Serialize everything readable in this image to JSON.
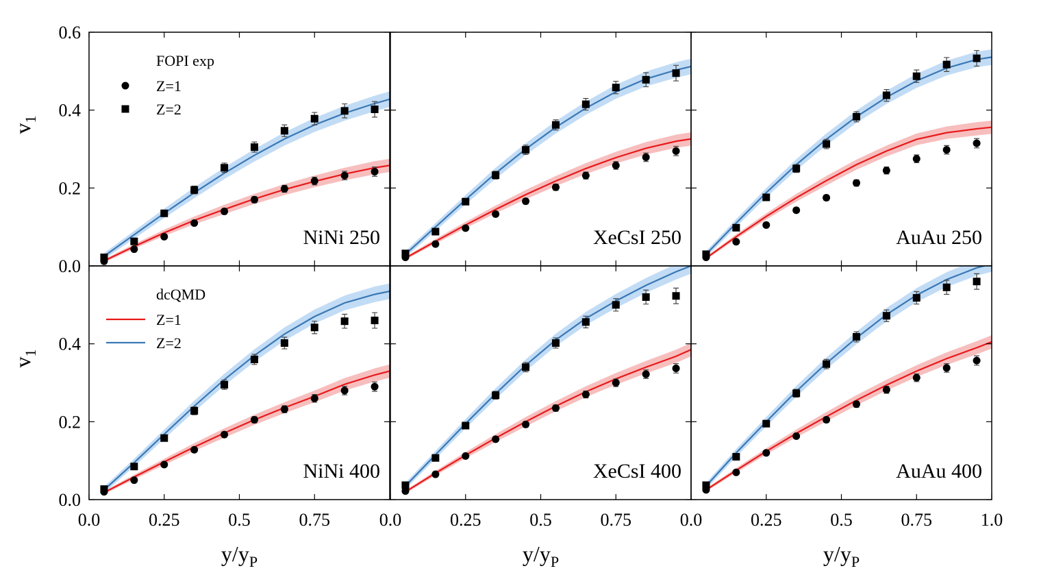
{
  "chart_data": [
    {
      "type": "scatter",
      "label": "NiNi 250",
      "xlim": [
        0,
        1
      ],
      "ylim": [
        0,
        0.6
      ],
      "xticks": [
        0,
        0.25,
        0.5,
        0.75,
        1
      ],
      "yticks": [
        {
          "value": 0,
          "label": "0.0"
        },
        0.2,
        0.4,
        0.6
      ],
      "ylabel": {
        "text": "v",
        "sub": "1"
      },
      "legend_title": "FOPI exp",
      "x": [
        0.05,
        0.15,
        0.25,
        0.35,
        0.45,
        0.55,
        0.65,
        0.75,
        0.85,
        0.95
      ],
      "series": [
        {
          "name": "Z=1",
          "marker": "circle",
          "color": "#000000",
          "values": [
            0.012,
            0.043,
            0.075,
            0.11,
            0.14,
            0.17,
            0.198,
            0.218,
            0.232,
            0.242
          ],
          "errors": [
            0.004,
            0.004,
            0.005,
            0.006,
            0.007,
            0.008,
            0.009,
            0.01,
            0.011,
            0.012
          ]
        },
        {
          "name": "Z=2",
          "marker": "square",
          "color": "#000000",
          "values": [
            0.022,
            0.063,
            0.135,
            0.195,
            0.252,
            0.305,
            0.347,
            0.378,
            0.398,
            0.402
          ],
          "errors": [
            0.006,
            0.007,
            0.008,
            0.01,
            0.012,
            0.013,
            0.015,
            0.016,
            0.018,
            0.02
          ]
        }
      ],
      "model": [
        {
          "color": "#e8191a",
          "band_color": "#f4a8a8",
          "x": [
            0.05,
            0.15,
            0.25,
            0.35,
            0.45,
            0.55,
            0.65,
            0.75,
            0.85,
            0.95,
            1.0
          ],
          "values": [
            0.013,
            0.05,
            0.085,
            0.117,
            0.145,
            0.172,
            0.196,
            0.217,
            0.236,
            0.252,
            0.258
          ],
          "band": [
            0.004,
            0.006,
            0.008,
            0.01,
            0.012,
            0.013,
            0.014,
            0.015,
            0.016,
            0.017,
            0.017
          ]
        },
        {
          "color": "#3a78b5",
          "band_color": "#aed0f2",
          "x": [
            0.05,
            0.15,
            0.25,
            0.35,
            0.45,
            0.55,
            0.65,
            0.75,
            0.85,
            0.95,
            1.0
          ],
          "values": [
            0.025,
            0.08,
            0.135,
            0.188,
            0.238,
            0.284,
            0.326,
            0.362,
            0.392,
            0.417,
            0.428
          ],
          "band": [
            0.008,
            0.01,
            0.012,
            0.014,
            0.015,
            0.016,
            0.017,
            0.018,
            0.019,
            0.02,
            0.02
          ]
        }
      ]
    },
    {
      "type": "scatter",
      "label": "XeCsI 250",
      "xlim": [
        0,
        1
      ],
      "ylim": [
        0,
        0.6
      ],
      "xticks": [
        0,
        0.25,
        0.5,
        0.75,
        1
      ],
      "yticks": [
        0,
        0.2,
        0.4,
        0.6
      ],
      "x": [
        0.05,
        0.15,
        0.25,
        0.35,
        0.45,
        0.55,
        0.65,
        0.75,
        0.85,
        0.95
      ],
      "series": [
        {
          "marker": "circle",
          "color": "#000000",
          "values": [
            0.022,
            0.056,
            0.097,
            0.133,
            0.166,
            0.202,
            0.232,
            0.258,
            0.279,
            0.295
          ],
          "errors": [
            0.004,
            0.004,
            0.005,
            0.006,
            0.007,
            0.008,
            0.009,
            0.01,
            0.011,
            0.012
          ]
        },
        {
          "marker": "square",
          "color": "#000000",
          "values": [
            0.032,
            0.088,
            0.165,
            0.233,
            0.298,
            0.362,
            0.415,
            0.458,
            0.478,
            0.495
          ],
          "errors": [
            0.006,
            0.007,
            0.008,
            0.01,
            0.012,
            0.013,
            0.015,
            0.016,
            0.018,
            0.02
          ]
        }
      ],
      "model": [
        {
          "color": "#e8191a",
          "band_color": "#f4a8a8",
          "x": [
            0.05,
            0.15,
            0.25,
            0.35,
            0.45,
            0.55,
            0.65,
            0.75,
            0.85,
            0.95,
            1.0
          ],
          "values": [
            0.02,
            0.063,
            0.105,
            0.145,
            0.183,
            0.218,
            0.25,
            0.278,
            0.302,
            0.32,
            0.326
          ],
          "band": [
            0.004,
            0.006,
            0.008,
            0.01,
            0.012,
            0.013,
            0.014,
            0.015,
            0.016,
            0.017,
            0.017
          ]
        },
        {
          "color": "#3a78b5",
          "band_color": "#aed0f2",
          "x": [
            0.05,
            0.15,
            0.25,
            0.35,
            0.45,
            0.55,
            0.65,
            0.75,
            0.85,
            0.95,
            1.0
          ],
          "values": [
            0.03,
            0.1,
            0.17,
            0.238,
            0.3,
            0.356,
            0.405,
            0.447,
            0.48,
            0.503,
            0.512
          ],
          "band": [
            0.008,
            0.01,
            0.012,
            0.014,
            0.015,
            0.016,
            0.017,
            0.018,
            0.019,
            0.02,
            0.02
          ]
        }
      ]
    },
    {
      "type": "scatter",
      "label": "AuAu 250",
      "xlim": [
        0,
        1
      ],
      "ylim": [
        0,
        0.6
      ],
      "xticks": [
        0,
        0.25,
        0.5,
        0.75,
        1
      ],
      "yticks": [
        0,
        0.2,
        0.4,
        0.6
      ],
      "x": [
        0.05,
        0.15,
        0.25,
        0.35,
        0.45,
        0.55,
        0.65,
        0.75,
        0.85,
        0.95
      ],
      "series": [
        {
          "marker": "circle",
          "color": "#000000",
          "values": [
            0.022,
            0.062,
            0.105,
            0.143,
            0.175,
            0.213,
            0.245,
            0.275,
            0.298,
            0.315
          ],
          "errors": [
            0.004,
            0.004,
            0.005,
            0.006,
            0.007,
            0.008,
            0.009,
            0.01,
            0.011,
            0.012
          ]
        },
        {
          "marker": "square",
          "color": "#000000",
          "values": [
            0.03,
            0.098,
            0.176,
            0.25,
            0.313,
            0.383,
            0.438,
            0.487,
            0.517,
            0.533
          ],
          "errors": [
            0.006,
            0.007,
            0.008,
            0.01,
            0.012,
            0.013,
            0.015,
            0.016,
            0.018,
            0.02
          ]
        }
      ],
      "model": [
        {
          "color": "#e8191a",
          "band_color": "#f4a8a8",
          "x": [
            0.05,
            0.15,
            0.25,
            0.35,
            0.45,
            0.55,
            0.65,
            0.75,
            0.85,
            0.95,
            1.0
          ],
          "values": [
            0.02,
            0.075,
            0.127,
            0.175,
            0.219,
            0.26,
            0.295,
            0.325,
            0.342,
            0.352,
            0.356
          ],
          "band": [
            0.004,
            0.006,
            0.008,
            0.01,
            0.012,
            0.013,
            0.014,
            0.015,
            0.016,
            0.017,
            0.017
          ]
        },
        {
          "color": "#3a78b5",
          "band_color": "#aed0f2",
          "x": [
            0.05,
            0.15,
            0.25,
            0.35,
            0.45,
            0.55,
            0.65,
            0.75,
            0.85,
            0.95,
            1.0
          ],
          "values": [
            0.03,
            0.11,
            0.188,
            0.26,
            0.325,
            0.383,
            0.433,
            0.475,
            0.508,
            0.53,
            0.536
          ],
          "band": [
            0.008,
            0.01,
            0.012,
            0.014,
            0.015,
            0.016,
            0.017,
            0.018,
            0.019,
            0.02,
            0.02
          ]
        }
      ]
    },
    {
      "type": "scatter",
      "label": "NiNi 400",
      "xlim": [
        0,
        1
      ],
      "ylim": [
        0,
        0.6
      ],
      "xticks": [
        {
          "value": 0,
          "label": "0.0"
        },
        0.25,
        0.5,
        0.75
      ],
      "yticks": [
        {
          "value": 0,
          "label": "0.0"
        },
        0.2,
        0.4
      ],
      "ylabel": {
        "text": "v",
        "sub": "1"
      },
      "xlabel": {
        "text": "y/y",
        "sub": "P"
      },
      "legend_title": "dcQMD",
      "x": [
        0.05,
        0.15,
        0.25,
        0.35,
        0.45,
        0.55,
        0.65,
        0.75,
        0.85,
        0.95
      ],
      "series": [
        {
          "marker": "circle",
          "color": "#000000",
          "values": [
            0.02,
            0.05,
            0.09,
            0.128,
            0.167,
            0.205,
            0.232,
            0.26,
            0.28,
            0.29
          ],
          "errors": [
            0.004,
            0.004,
            0.005,
            0.006,
            0.007,
            0.008,
            0.009,
            0.01,
            0.011,
            0.012
          ]
        },
        {
          "marker": "square",
          "color": "#000000",
          "values": [
            0.027,
            0.085,
            0.158,
            0.228,
            0.295,
            0.36,
            0.402,
            0.442,
            0.458,
            0.46
          ],
          "errors": [
            0.006,
            0.007,
            0.008,
            0.01,
            0.012,
            0.013,
            0.015,
            0.016,
            0.018,
            0.02
          ]
        }
      ],
      "model": [
        {
          "name": "Z=1",
          "color": "#e8191a",
          "band_color": "#f4a8a8",
          "x": [
            0.05,
            0.15,
            0.25,
            0.35,
            0.45,
            0.55,
            0.65,
            0.75,
            0.85,
            0.95,
            1.0
          ],
          "values": [
            0.018,
            0.058,
            0.097,
            0.135,
            0.171,
            0.205,
            0.236,
            0.265,
            0.296,
            0.32,
            0.33
          ],
          "band": [
            0.004,
            0.006,
            0.008,
            0.01,
            0.012,
            0.013,
            0.014,
            0.015,
            0.016,
            0.017,
            0.017
          ]
        },
        {
          "name": "Z=2",
          "color": "#3a78b5",
          "band_color": "#aed0f2",
          "x": [
            0.05,
            0.15,
            0.25,
            0.35,
            0.45,
            0.55,
            0.65,
            0.75,
            0.85,
            0.95,
            1.0
          ],
          "values": [
            0.025,
            0.095,
            0.168,
            0.24,
            0.308,
            0.37,
            0.425,
            0.47,
            0.505,
            0.527,
            0.535
          ],
          "band": [
            0.008,
            0.01,
            0.012,
            0.014,
            0.015,
            0.016,
            0.017,
            0.018,
            0.019,
            0.02,
            0.02
          ]
        }
      ]
    },
    {
      "type": "scatter",
      "label": "XeCsI 400",
      "xlim": [
        0,
        1
      ],
      "ylim": [
        0,
        0.6
      ],
      "xticks": [
        {
          "value": 0,
          "label": "0.0"
        },
        0.25,
        0.5,
        0.75
      ],
      "yticks": [
        0,
        0.2,
        0.4
      ],
      "xlabel": {
        "text": "y/y",
        "sub": "P"
      },
      "x": [
        0.05,
        0.15,
        0.25,
        0.35,
        0.45,
        0.55,
        0.65,
        0.75,
        0.85,
        0.95
      ],
      "series": [
        {
          "marker": "circle",
          "color": "#000000",
          "values": [
            0.022,
            0.065,
            0.112,
            0.155,
            0.193,
            0.235,
            0.27,
            0.3,
            0.322,
            0.337
          ],
          "errors": [
            0.004,
            0.004,
            0.005,
            0.006,
            0.007,
            0.008,
            0.009,
            0.01,
            0.011,
            0.012
          ]
        },
        {
          "marker": "square",
          "color": "#000000",
          "values": [
            0.037,
            0.107,
            0.19,
            0.268,
            0.34,
            0.402,
            0.456,
            0.5,
            0.52,
            0.523
          ],
          "errors": [
            0.006,
            0.007,
            0.008,
            0.01,
            0.012,
            0.013,
            0.015,
            0.016,
            0.018,
            0.02
          ]
        }
      ],
      "model": [
        {
          "color": "#e8191a",
          "band_color": "#f4a8a8",
          "x": [
            0.05,
            0.15,
            0.25,
            0.35,
            0.45,
            0.55,
            0.65,
            0.75,
            0.85,
            0.95,
            1.0
          ],
          "values": [
            0.02,
            0.068,
            0.114,
            0.158,
            0.2,
            0.24,
            0.277,
            0.31,
            0.34,
            0.368,
            0.385
          ],
          "band": [
            0.004,
            0.006,
            0.008,
            0.01,
            0.012,
            0.013,
            0.014,
            0.015,
            0.016,
            0.017,
            0.017
          ]
        },
        {
          "color": "#3a78b5",
          "band_color": "#aed0f2",
          "x": [
            0.05,
            0.15,
            0.25,
            0.35,
            0.45,
            0.55,
            0.65,
            0.75,
            0.85,
            0.95,
            1.0
          ],
          "values": [
            0.035,
            0.115,
            0.195,
            0.272,
            0.345,
            0.41,
            0.465,
            0.51,
            0.55,
            0.585,
            0.6
          ],
          "band": [
            0.008,
            0.01,
            0.012,
            0.014,
            0.015,
            0.016,
            0.017,
            0.018,
            0.019,
            0.02,
            0.02
          ]
        }
      ]
    },
    {
      "type": "scatter",
      "label": "AuAu 400",
      "xlim": [
        0,
        1
      ],
      "ylim": [
        0,
        0.6
      ],
      "xticks": [
        {
          "value": 0,
          "label": "0.0"
        },
        0.25,
        0.5,
        0.75,
        {
          "value": 1,
          "label": "1.0"
        }
      ],
      "yticks": [
        0,
        0.2,
        0.4
      ],
      "xlabel": {
        "text": "y/y",
        "sub": "P"
      },
      "x": [
        0.05,
        0.15,
        0.25,
        0.35,
        0.45,
        0.55,
        0.65,
        0.75,
        0.85,
        0.95
      ],
      "series": [
        {
          "marker": "circle",
          "color": "#000000",
          "values": [
            0.025,
            0.07,
            0.12,
            0.163,
            0.205,
            0.245,
            0.282,
            0.313,
            0.338,
            0.357
          ],
          "errors": [
            0.004,
            0.004,
            0.005,
            0.006,
            0.007,
            0.008,
            0.009,
            0.01,
            0.011,
            0.012
          ]
        },
        {
          "marker": "square",
          "color": "#000000",
          "values": [
            0.037,
            0.11,
            0.195,
            0.273,
            0.348,
            0.418,
            0.472,
            0.518,
            0.545,
            0.56
          ],
          "errors": [
            0.006,
            0.007,
            0.008,
            0.01,
            0.012,
            0.013,
            0.015,
            0.016,
            0.018,
            0.02
          ]
        }
      ],
      "model": [
        {
          "color": "#e8191a",
          "band_color": "#f4a8a8",
          "x": [
            0.05,
            0.15,
            0.25,
            0.35,
            0.45,
            0.55,
            0.65,
            0.75,
            0.85,
            0.95,
            1.0
          ],
          "values": [
            0.025,
            0.075,
            0.124,
            0.17,
            0.213,
            0.255,
            0.294,
            0.33,
            0.362,
            0.39,
            0.405
          ],
          "band": [
            0.004,
            0.006,
            0.008,
            0.01,
            0.012,
            0.013,
            0.014,
            0.015,
            0.016,
            0.017,
            0.017
          ]
        },
        {
          "color": "#3a78b5",
          "band_color": "#aed0f2",
          "x": [
            0.05,
            0.15,
            0.25,
            0.35,
            0.45,
            0.55,
            0.65,
            0.75,
            0.85,
            0.95,
            1.0
          ],
          "values": [
            0.035,
            0.12,
            0.2,
            0.278,
            0.35,
            0.415,
            0.475,
            0.525,
            0.565,
            0.595,
            0.605
          ],
          "band": [
            0.008,
            0.01,
            0.012,
            0.014,
            0.015,
            0.016,
            0.017,
            0.018,
            0.019,
            0.02,
            0.02
          ]
        }
      ]
    }
  ]
}
